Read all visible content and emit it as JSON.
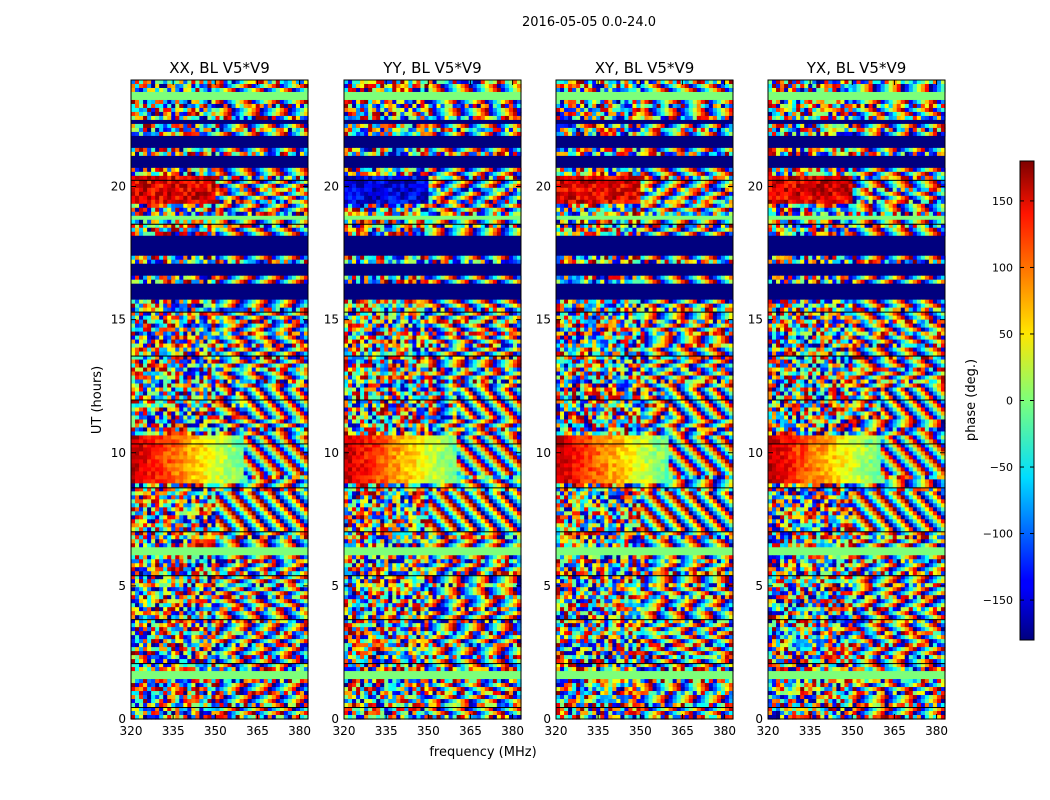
{
  "figure": {
    "suptitle": "2016-05-05 0.0-24.0",
    "ylabel": "UT (hours)",
    "xlabel": "frequency (MHz)",
    "colorbar_label": "phase (deg.)"
  },
  "chart_data": {
    "type": "heatmap",
    "quantity": "phase (deg.)",
    "x_range": [
      320,
      383
    ],
    "y_range": [
      0,
      24
    ],
    "x_ticks": [
      320,
      335,
      350,
      365,
      380
    ],
    "y_ticks": [
      0,
      5,
      10,
      15,
      20
    ],
    "panels": [
      {
        "title": "XX, BL V5*V9"
      },
      {
        "title": "YY, BL V5*V9"
      },
      {
        "title": "XY, BL V5*V9"
      },
      {
        "title": "YX, BL V5*V9"
      }
    ],
    "colorbar": {
      "range": [
        -180,
        180
      ],
      "ticks": [
        150,
        100,
        50,
        0,
        -50,
        -100,
        -150
      ],
      "colormap": "jet"
    },
    "features": {
      "saturated_blocks_hours": [
        [
          15.7,
          16.3
        ],
        [
          16.6,
          17.1
        ],
        [
          17.4,
          18.2
        ],
        [
          20.7,
          21.1
        ],
        [
          21.4,
          21.9
        ],
        [
          22.3,
          22.5
        ]
      ],
      "flat_zero_bands_hours": [
        [
          1.5,
          1.8
        ],
        [
          6.1,
          6.5
        ],
        [
          18.7,
          18.9
        ],
        [
          23.2,
          23.6
        ]
      ],
      "fringe_regions": [
        {
          "hours": [
            7,
            8.5
          ],
          "freq_start_mhz": 350
        },
        {
          "hours": [
            11.3,
            12.5
          ],
          "freq_start_mhz": 360
        },
        {
          "hours": [
            9.2,
            10.6
          ],
          "freq_start_mhz": 360
        }
      ],
      "red_band_hours": [
        19.3,
        20.4
      ],
      "gradient_band_hours": [
        8.8,
        10.7
      ]
    }
  }
}
